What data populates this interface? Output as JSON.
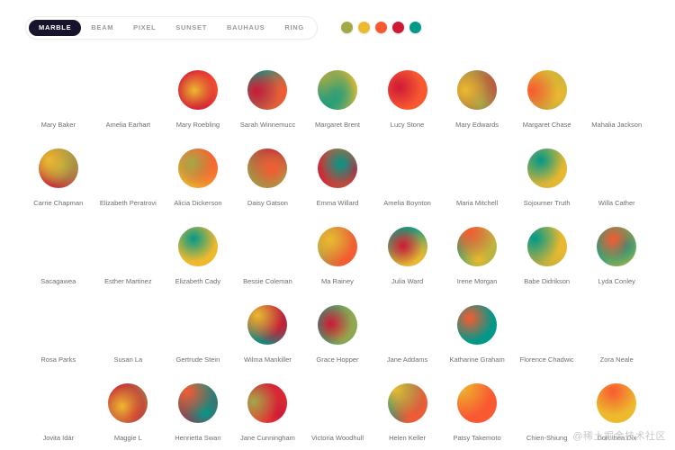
{
  "tabs": [
    {
      "label": "MARBLE",
      "active": true
    },
    {
      "label": "BEAM",
      "active": false
    },
    {
      "label": "PIXEL",
      "active": false
    },
    {
      "label": "SUNSET",
      "active": false
    },
    {
      "label": "BAUHAUS",
      "active": false
    },
    {
      "label": "RING",
      "active": false
    }
  ],
  "palette": [
    "#A3A948",
    "#EDB92E",
    "#F85931",
    "#CE1836",
    "#009989"
  ],
  "avatars": [
    "Mary Baker",
    "Amelia Earhart",
    "Mary Roebling",
    "Sarah Winnemucc",
    "Margaret Brent",
    "Lucy Stone",
    "Mary Edwards",
    "Margaret Chase",
    "Mahalia Jackson",
    "Carrie Chapman",
    "Elizabeth Peratrovi",
    "Alicia Dickerson",
    "Daisy Gatson",
    "Emma Willard",
    "Amelia Boynton",
    "Maria Mitchell",
    "Sojourner Truth",
    "Willa Cather",
    "Sacagawea",
    "Esther Martinez",
    "Elizabeth Cady",
    "Bessie Coleman",
    "Ma Rainey",
    "Julia Ward",
    "Irene Morgan",
    "Babe Didrikson",
    "Lyda Conley",
    "Rosa Parks",
    "Susan La",
    "Gertrude Stein",
    "Wilma Mankiller",
    "Grace Hopper",
    "Jane Addams",
    "Katharine Graham",
    "Florence Chadwic",
    "Zora Neale",
    "Jovita Idár",
    "Maggie L",
    "Henrietta Swan",
    "Jane Cunningham",
    "Victoria Woodhull",
    "Helen Keller",
    "Patsy Takemoto",
    "Chien-Shiung",
    "Dorothea Dix"
  ],
  "watermark": "@稀土掘金技术社区"
}
